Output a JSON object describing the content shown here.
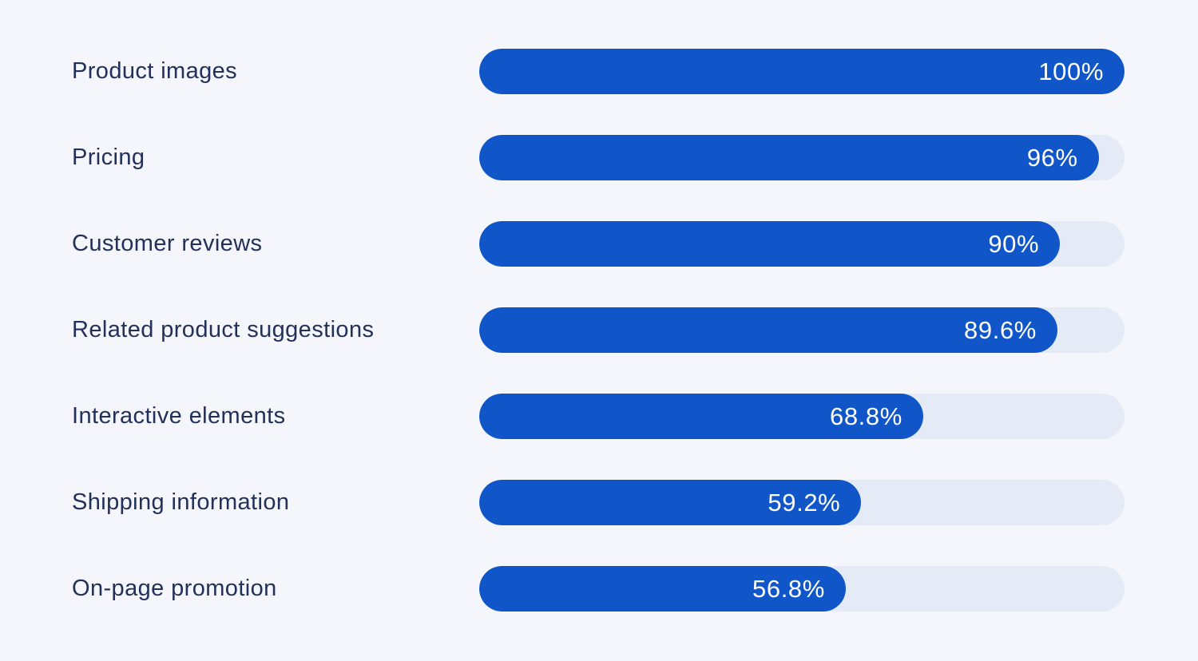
{
  "chart_data": {
    "type": "bar",
    "orientation": "horizontal",
    "title": "",
    "xlabel": "",
    "ylabel": "",
    "xlim": [
      0,
      100
    ],
    "grid": false,
    "legend": false,
    "value_label_position": "inside-end",
    "categories": [
      "Product images",
      "Pricing",
      "Customer reviews",
      "Related product suggestions",
      "Interactive elements",
      "Shipping information",
      "On-page promotion"
    ],
    "values": [
      100,
      96,
      90,
      89.6,
      68.8,
      59.2,
      56.8
    ],
    "display_values": [
      "100%",
      "96%",
      "90%",
      "89.6%",
      "68.8%",
      "59.2%",
      "56.8%"
    ],
    "colors": {
      "bar_fill": "#1156c9",
      "bar_track": "#e5eaf7",
      "background": "#f4f6fb",
      "label_text": "#22305a",
      "value_text": "#ffffff"
    }
  }
}
